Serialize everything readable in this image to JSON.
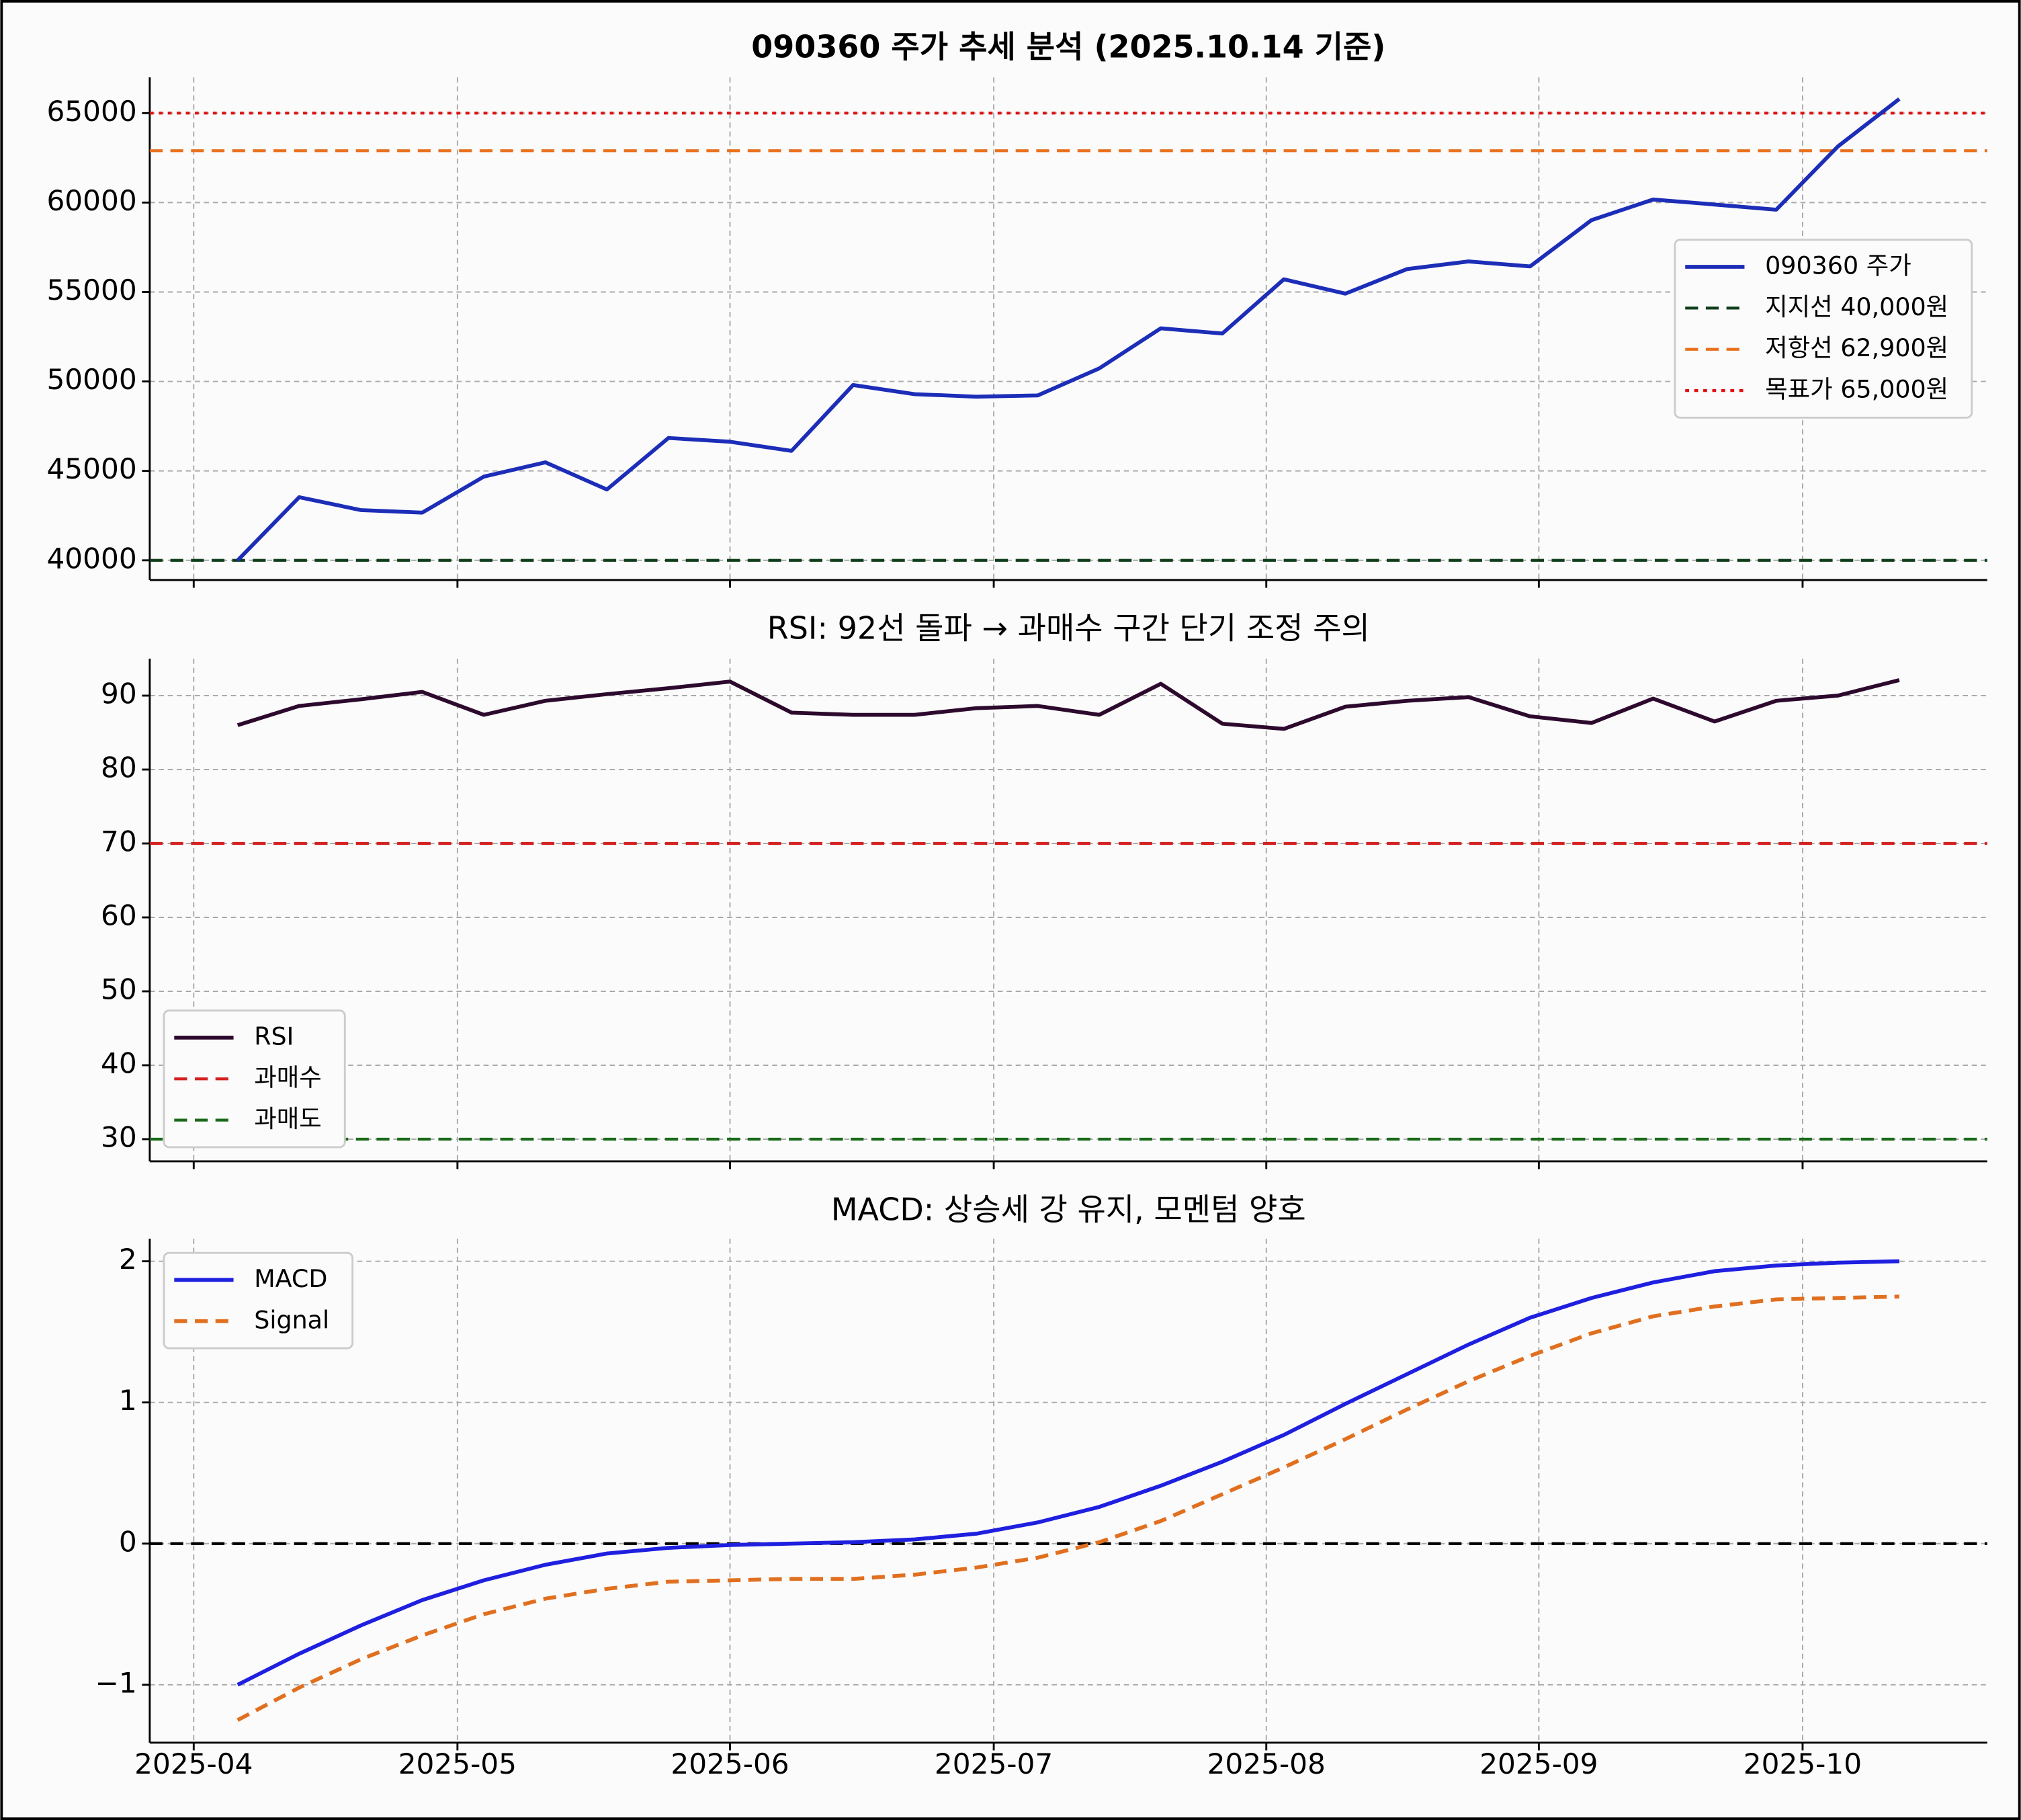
{
  "chart_data": [
    {
      "type": "line",
      "title": "090360 주가 추세 분석 (2025.10.14 기준)",
      "title_bold": true,
      "legend": "center right",
      "grid": true,
      "x": [
        "2025-04-06",
        "2025-04-13",
        "2025-04-20",
        "2025-04-27",
        "2025-05-04",
        "2025-05-11",
        "2025-05-18",
        "2025-05-25",
        "2025-06-01",
        "2025-06-08",
        "2025-06-15",
        "2025-06-22",
        "2025-06-29",
        "2025-07-06",
        "2025-07-13",
        "2025-07-20",
        "2025-07-27",
        "2025-08-03",
        "2025-08-10",
        "2025-08-17",
        "2025-08-24",
        "2025-08-31",
        "2025-09-07",
        "2025-09-14",
        "2025-09-21",
        "2025-09-28",
        "2025-10-05",
        "2025-10-12"
      ],
      "xlim": [
        "2025-03-27",
        "2025-10-22"
      ],
      "xticks": [
        "2025-04",
        "2025-05",
        "2025-06",
        "2025-07",
        "2025-08",
        "2025-09",
        "2025-10"
      ],
      "ylim": [
        38900,
        67000
      ],
      "yticks": [
        40000,
        45000,
        50000,
        55000,
        60000,
        65000
      ],
      "series": [
        {
          "name": "090360 주가",
          "color": "#1c2db8",
          "dash": "solid",
          "values": [
            40000,
            43530,
            42810,
            42670,
            44680,
            45480,
            43960,
            46840,
            46630,
            46120,
            49800,
            49290,
            49150,
            49220,
            50730,
            52970,
            52680,
            55710,
            54910,
            56280,
            56710,
            56430,
            59020,
            60170,
            59890,
            59600,
            63130,
            65790
          ]
        }
      ],
      "hlines": [
        {
          "name": "지지선 40,000원",
          "value": 40000,
          "color": "#0f3d1a",
          "dash": "dashed"
        },
        {
          "name": "저항선 62,900원",
          "value": 62900,
          "color": "#e8711f",
          "dash": "dashed"
        },
        {
          "name": "목표가 65,000원",
          "value": 65000,
          "color": "#e01010",
          "dash": "dotted"
        }
      ]
    },
    {
      "type": "line",
      "title": "RSI: 92선 돌파 → 과매수 구간 단기 조정 주의",
      "title_bold": false,
      "legend": "lower left",
      "grid": true,
      "x": [
        "2025-04-06",
        "2025-04-13",
        "2025-04-20",
        "2025-04-27",
        "2025-05-04",
        "2025-05-11",
        "2025-05-18",
        "2025-05-25",
        "2025-06-01",
        "2025-06-08",
        "2025-06-15",
        "2025-06-22",
        "2025-06-29",
        "2025-07-06",
        "2025-07-13",
        "2025-07-20",
        "2025-07-27",
        "2025-08-03",
        "2025-08-10",
        "2025-08-17",
        "2025-08-24",
        "2025-08-31",
        "2025-09-07",
        "2025-09-14",
        "2025-09-21",
        "2025-09-28",
        "2025-10-05",
        "2025-10-12"
      ],
      "xlim": [
        "2025-03-27",
        "2025-10-22"
      ],
      "xticks": [
        "2025-04",
        "2025-05",
        "2025-06",
        "2025-07",
        "2025-08",
        "2025-09",
        "2025-10"
      ],
      "ylim": [
        27,
        95
      ],
      "yticks": [
        30,
        40,
        50,
        60,
        70,
        80,
        90
      ],
      "series": [
        {
          "name": "RSI",
          "color": "#2d0a2d",
          "dash": "solid",
          "values": [
            86.0,
            88.6,
            89.5,
            90.5,
            87.4,
            89.3,
            90.2,
            91.0,
            91.9,
            87.7,
            87.4,
            87.4,
            88.3,
            88.6,
            87.4,
            91.6,
            86.2,
            85.5,
            88.5,
            89.3,
            89.8,
            87.2,
            86.3,
            89.6,
            86.5,
            89.3,
            90.0,
            92.1
          ]
        }
      ],
      "hlines": [
        {
          "name": "과매수",
          "value": 70,
          "color": "#d42020",
          "dash": "dashed"
        },
        {
          "name": "과매도",
          "value": 30,
          "color": "#1a6a1a",
          "dash": "dashed"
        }
      ]
    },
    {
      "type": "line",
      "title": "MACD: 상승세 강 유지, 모멘텀 양호",
      "title_bold": false,
      "legend": "upper left",
      "grid": true,
      "x": [
        "2025-04-06",
        "2025-04-13",
        "2025-04-20",
        "2025-04-27",
        "2025-05-04",
        "2025-05-11",
        "2025-05-18",
        "2025-05-25",
        "2025-06-01",
        "2025-06-08",
        "2025-06-15",
        "2025-06-22",
        "2025-06-29",
        "2025-07-06",
        "2025-07-13",
        "2025-07-20",
        "2025-07-27",
        "2025-08-03",
        "2025-08-10",
        "2025-08-17",
        "2025-08-24",
        "2025-08-31",
        "2025-09-07",
        "2025-09-14",
        "2025-09-21",
        "2025-09-28",
        "2025-10-05",
        "2025-10-12"
      ],
      "xlim": [
        "2025-03-27",
        "2025-10-22"
      ],
      "xticks": [
        "2025-04",
        "2025-05",
        "2025-06",
        "2025-07",
        "2025-08",
        "2025-09",
        "2025-10"
      ],
      "xtick_labels": true,
      "ylim": [
        -1.41,
        2.16
      ],
      "yticks": [
        {
          "value": -1,
          "label": "−1"
        },
        0,
        1,
        2
      ],
      "series": [
        {
          "name": "MACD",
          "color": "#1f1fe0",
          "dash": "solid",
          "values": [
            -1.0,
            -0.78,
            -0.58,
            -0.4,
            -0.26,
            -0.15,
            -0.07,
            -0.03,
            -0.01,
            0.0,
            0.01,
            0.03,
            0.07,
            0.15,
            0.26,
            0.41,
            0.58,
            0.77,
            0.99,
            1.2,
            1.41,
            1.6,
            1.74,
            1.85,
            1.93,
            1.97,
            1.99,
            2.0
          ]
        },
        {
          "name": "Signal",
          "color": "#e07020",
          "dash": "dashed",
          "values": [
            -1.25,
            -1.02,
            -0.82,
            -0.65,
            -0.5,
            -0.39,
            -0.32,
            -0.27,
            -0.26,
            -0.25,
            -0.25,
            -0.22,
            -0.17,
            -0.1,
            0.01,
            0.16,
            0.35,
            0.54,
            0.74,
            0.95,
            1.15,
            1.33,
            1.49,
            1.61,
            1.68,
            1.73,
            1.74,
            1.75
          ]
        }
      ],
      "hlines": [
        {
          "value": 0,
          "color": "#000000",
          "dash": "dashed"
        }
      ]
    }
  ]
}
